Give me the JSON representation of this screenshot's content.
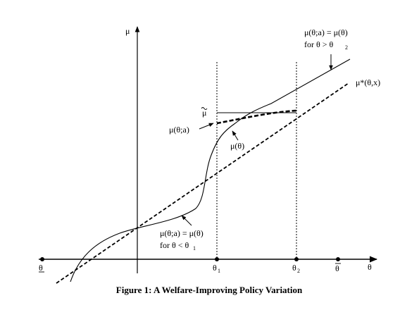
{
  "axes": {
    "y_label": "μ",
    "x_label": "θ"
  },
  "x_ticks": {
    "theta_lower": "θ",
    "theta_1": "θ",
    "theta_1_sub": "1",
    "theta_2": "θ",
    "theta_2_sub": "2",
    "theta_upper": "θ"
  },
  "labels": {
    "mu_tilde": "μ",
    "mu_theta_a": "μ(θ;a)",
    "mu_theta": "μ(θ)",
    "mu_star": "μ*(θ,x)",
    "top_eq": "μ(θ;a) = μ(θ)",
    "top_cond": "for θ > θ",
    "top_cond_sub": "2",
    "bottom_eq": "μ(θ;a) = μ(θ)",
    "bottom_cond": "for θ < θ",
    "bottom_cond_sub": "1"
  },
  "caption": "Figure 1:  A Welfare-Improving Policy Variation"
}
